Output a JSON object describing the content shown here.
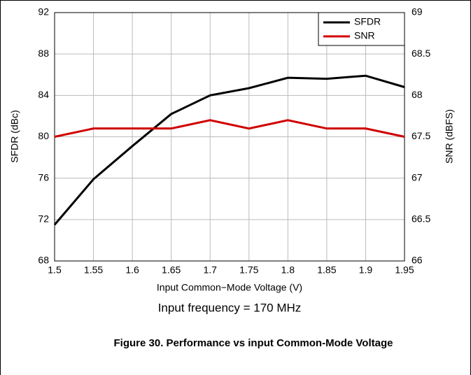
{
  "chart_data": {
    "type": "line",
    "y_label": "SFDR (dBc)",
    "y2_label": "SNR (dBFS)",
    "x_label": "Input Common−Mode Voltage (V)",
    "annotation": "Input frequency = 170 MHz",
    "caption": "Figure 30. Performance vs input Common-Mode Voltage",
    "x": [
      1.5,
      1.55,
      1.6,
      1.65,
      1.7,
      1.75,
      1.8,
      1.85,
      1.9,
      1.95
    ],
    "xlim": [
      1.5,
      1.95
    ],
    "xticks": [
      1.5,
      1.55,
      1.6,
      1.65,
      1.7,
      1.75,
      1.8,
      1.85,
      1.9,
      1.95
    ],
    "ylim": [
      68,
      92
    ],
    "yticks": [
      68,
      72,
      76,
      80,
      84,
      88,
      92
    ],
    "y2lim": [
      66,
      69
    ],
    "y2ticks": [
      66,
      66.5,
      67,
      67.5,
      68,
      68.5,
      69
    ],
    "grid": true,
    "legend": "upper right",
    "series": [
      {
        "name": "SFDR",
        "color": "#000000",
        "values": [
          71.5,
          75.9,
          79.1,
          82.2,
          84.0,
          84.7,
          85.7,
          85.6,
          85.9,
          84.8
        ]
      },
      {
        "name": "SNR",
        "color": "#d00000",
        "axis": "y2",
        "values": [
          67.5,
          67.6,
          67.6,
          67.6,
          67.7,
          67.6,
          67.7,
          67.6,
          67.6,
          67.5
        ]
      }
    ]
  }
}
